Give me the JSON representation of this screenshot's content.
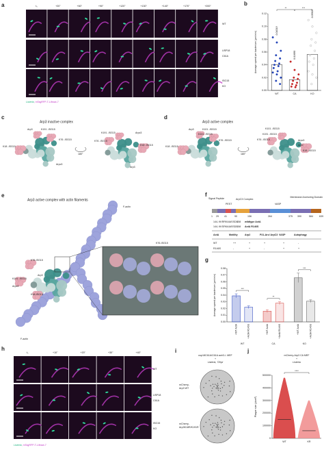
{
  "panels": {
    "a": {
      "letter": "a",
      "times": [
        "t₀",
        "+20''",
        "+60''",
        "+90''",
        "+120''",
        "+130''",
        "+140''",
        "+170''",
        "+200''"
      ],
      "rows": [
        "WT",
        "USP18",
        "C61A",
        "ISG15",
        "KO"
      ],
      "caption_bacteria": "Listeria",
      "caption_marker": ", mTagRFP-T-Lifeact-7"
    },
    "c": {
      "letter": "c",
      "title": "Arp3 inactive complex",
      "left": [
        "Arp3",
        "K191 -ISG15",
        "K76 -ISG15",
        "K18 -ISG15",
        "Arpc3"
      ],
      "rotation": "180°",
      "right": [
        "K191 -ISG15",
        "Arpc3",
        "K76 -ISG15",
        "K18 -ISG15",
        "Arp3"
      ]
    },
    "d": {
      "letter": "d",
      "title": "Arp3 active complex",
      "left": [
        "Arp3",
        "K101 -ISG15",
        "K191 -ISG15",
        "K76 -ISG15",
        "K18 -ISG15"
      ],
      "rotation": "180°",
      "right": [
        "K101 -ISG15",
        "K191 -ISG15",
        "K76 -ISG15",
        "Arpc3",
        "Arp2",
        "K18 -ISG15"
      ]
    },
    "e": {
      "letter": "e",
      "title": "Arp3 active complex with actin filaments",
      "labels": [
        "F-actin",
        "K76-ISG15",
        "Arp3",
        "K191 -ISG15",
        "Arpc3",
        "K18-ISG15",
        "F-actin"
      ],
      "inset_label": "K76-ISG15"
    },
    "f": {
      "letter": "f",
      "domains": [
        "Signal Peptide",
        "PEST",
        "ArpC3 Complex",
        "VASP",
        "Membrane Anchoring Domain"
      ],
      "positions": [
        "1",
        "29",
        "41",
        "90",
        "156",
        "264",
        "375",
        "390",
        "584",
        "639"
      ],
      "sequences": [
        {
          "start": "144-",
          "seq": "KKRRKAIASSDS",
          "end": "-158",
          "name": "wildtype ActA"
        },
        {
          "start": "144-",
          "seq": "KKSRKAIASSDS",
          "end": "-158",
          "name": "ActA R146S"
        }
      ],
      "table": {
        "header": [
          "ActA",
          "Motility",
          "Arp2",
          "P21-Arc/ ArpC3",
          "VASP",
          "Autophagy"
        ],
        "rows": [
          [
            "WT",
            "++",
            "+",
            "+",
            "+",
            "-"
          ],
          [
            "R146S",
            "-",
            "+",
            "-",
            "+",
            "+"
          ]
        ]
      }
    },
    "h": {
      "letter": "h",
      "times": [
        "t₀",
        "+10''",
        "+20''",
        "+30''",
        "+40''"
      ],
      "rows": [
        "WT",
        "USP18",
        "C61A",
        "ISG15",
        "KO"
      ],
      "caption_bacteria": "Listeria",
      "caption_marker": ", mTagRFP-T-Lifeact-7"
    },
    "i": {
      "letter": "i",
      "title": [
        "usp18C61A/C61A actr3-/- MEF",
        "+",
        "Listeria, 72hpi"
      ],
      "wells": [
        [
          "mCherry-",
          "Arp3 WT"
        ],
        [
          "mCherry-",
          "Arp3K18R/K191R"
        ]
      ]
    }
  },
  "chart_data": [
    {
      "type": "bar",
      "letter": "b",
      "y_label": "Average speed per bacterium (µm/min)",
      "categories": [
        "WT",
        "CA",
        "KO"
      ],
      "values": [
        0.04019,
        0.0168,
        0.05627
      ],
      "value_labels": [
        "0.04019",
        "0.01680",
        "0.05627"
      ],
      "colors": [
        "#2545b8",
        "#c62828",
        "#9e9e9e"
      ],
      "points": [
        [
          0.083,
          0.075,
          0.062,
          0.055,
          0.05,
          0.046,
          0.042,
          0.04,
          0.038,
          0.035,
          0.03,
          0.028,
          0.025,
          0.02,
          0.015,
          0.01
        ],
        [
          0.045,
          0.032,
          0.025,
          0.02,
          0.018,
          0.015,
          0.012,
          0.01,
          0.008,
          0.006,
          0.005
        ],
        [
          0.11,
          0.1,
          0.09,
          0.08,
          0.075,
          0.07,
          0.062,
          0.055,
          0.05,
          0.045,
          0.04,
          0.03,
          0.025,
          0.02,
          0.01
        ]
      ],
      "significance": [
        "**",
        "***"
      ],
      "ylim": [
        0,
        0.12
      ],
      "yticks": [
        {
          "value": 0,
          "label": "0.00"
        },
        {
          "value": 0.02,
          "label": "0.02"
        },
        {
          "value": 0.04,
          "label": "0.04"
        },
        {
          "value": 0.06,
          "label": "0.06"
        },
        {
          "value": 0.08,
          "label": "0.08"
        },
        {
          "value": 0.1,
          "label": "0.10"
        },
        {
          "value": 0.12,
          "label": "0.12"
        }
      ]
    },
    {
      "type": "groupedbar",
      "letter": "g",
      "y_label": "Average speed per bacterium (µm/min)",
      "groups": [
        "WT",
        "CA",
        "KO"
      ],
      "group_colors": [
        "#3b55c4",
        "#d9534f",
        "#666666"
      ],
      "series": [
        {
          "name": "+WT ActA",
          "values": [
            0.039,
            0.016,
            0.066
          ],
          "errors": [
            0.003,
            0.002,
            0.007
          ]
        },
        {
          "name": "+ActA R146S",
          "values": [
            0.022,
            0.028,
            0.031
          ],
          "errors": [
            0.002,
            0.002,
            0.002
          ]
        }
      ],
      "significance": [
        "***",
        "**",
        "***"
      ],
      "ylim": [
        0,
        0.08
      ],
      "yticks": [
        {
          "value": 0,
          "label": "0.00"
        },
        {
          "value": 0.01,
          "label": "0.01"
        },
        {
          "value": 0.02,
          "label": "0.02"
        },
        {
          "value": 0.03,
          "label": "0.03"
        },
        {
          "value": 0.04,
          "label": "0.04"
        },
        {
          "value": 0.05,
          "label": "0.05"
        },
        {
          "value": 0.06,
          "label": "0.06"
        },
        {
          "value": 0.07,
          "label": "0.07"
        },
        {
          "value": 0.08,
          "label": "0.08"
        }
      ]
    },
    {
      "type": "violin",
      "letter": "j",
      "title": [
        "mCherry-Arp3 CA MEF",
        "+",
        "Listeria"
      ],
      "y_label": "Plaque size (pixel²)",
      "categories": [
        "WT",
        "KR"
      ],
      "values": [
        150000,
        60000
      ],
      "max": [
        480000,
        300000
      ],
      "colors": [
        "#d32f2f",
        "#f08a8a"
      ],
      "significance": [
        "****"
      ],
      "ylim": [
        0,
        500000
      ],
      "yticks": [
        0,
        100000,
        200000,
        300000,
        400000,
        500000
      ]
    }
  ]
}
